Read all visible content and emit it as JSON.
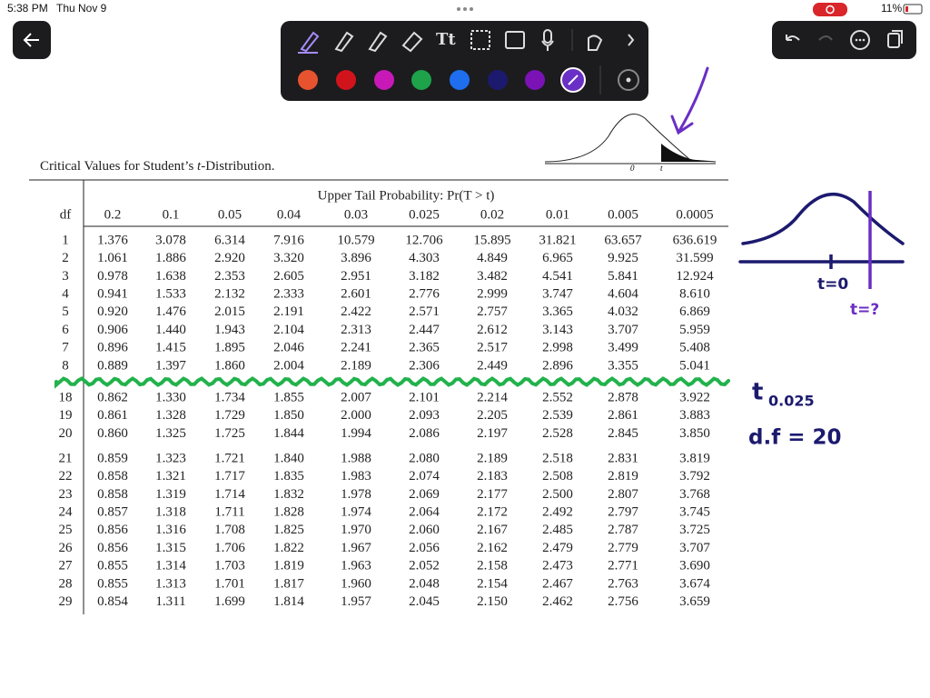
{
  "status_bar": {
    "time": "5:38 PM",
    "date": "Thu Nov 9",
    "battery": "11%"
  },
  "toolbar": {
    "text_tool": "Tt"
  },
  "figure": {
    "zero_label": "0",
    "t_label": "t"
  },
  "table": {
    "title_prefix": "Critical Values for Student’s ",
    "title_var": "t",
    "title_suffix": "-Distribution.",
    "header": "Upper Tail Probability:  Pr(T > t)",
    "df_header": "df",
    "columns": [
      "0.2",
      "0.1",
      "0.05",
      "0.04",
      "0.03",
      "0.025",
      "0.02",
      "0.01",
      "0.005",
      "0.0005"
    ],
    "groups": [
      [
        [
          "1",
          "1.376",
          "3.078",
          "6.314",
          "7.916",
          "10.579",
          "12.706",
          "15.895",
          "31.821",
          "63.657",
          "636.619"
        ],
        [
          "2",
          "1.061",
          "1.886",
          "2.920",
          "3.320",
          "3.896",
          "4.303",
          "4.849",
          "6.965",
          "9.925",
          "31.599"
        ],
        [
          "3",
          "0.978",
          "1.638",
          "2.353",
          "2.605",
          "2.951",
          "3.182",
          "3.482",
          "4.541",
          "5.841",
          "12.924"
        ],
        [
          "4",
          "0.941",
          "1.533",
          "2.132",
          "2.333",
          "2.601",
          "2.776",
          "2.999",
          "3.747",
          "4.604",
          "8.610"
        ],
        [
          "5",
          "0.920",
          "1.476",
          "2.015",
          "2.191",
          "2.422",
          "2.571",
          "2.757",
          "3.365",
          "4.032",
          "6.869"
        ],
        [
          "6",
          "0.906",
          "1.440",
          "1.943",
          "2.104",
          "2.313",
          "2.447",
          "2.612",
          "3.143",
          "3.707",
          "5.959"
        ],
        [
          "7",
          "0.896",
          "1.415",
          "1.895",
          "2.046",
          "2.241",
          "2.365",
          "2.517",
          "2.998",
          "3.499",
          "5.408"
        ],
        [
          "8",
          "0.889",
          "1.397",
          "1.860",
          "2.004",
          "2.189",
          "2.306",
          "2.449",
          "2.896",
          "3.355",
          "5.041"
        ]
      ],
      [
        [
          "18",
          "0.862",
          "1.330",
          "1.734",
          "1.855",
          "2.007",
          "2.101",
          "2.214",
          "2.552",
          "2.878",
          "3.922"
        ],
        [
          "19",
          "0.861",
          "1.328",
          "1.729",
          "1.850",
          "2.000",
          "2.093",
          "2.205",
          "2.539",
          "2.861",
          "3.883"
        ],
        [
          "20",
          "0.860",
          "1.325",
          "1.725",
          "1.844",
          "1.994",
          "2.086",
          "2.197",
          "2.528",
          "2.845",
          "3.850"
        ]
      ],
      [
        [
          "21",
          "0.859",
          "1.323",
          "1.721",
          "1.840",
          "1.988",
          "2.080",
          "2.189",
          "2.518",
          "2.831",
          "3.819"
        ],
        [
          "22",
          "0.858",
          "1.321",
          "1.717",
          "1.835",
          "1.983",
          "2.074",
          "2.183",
          "2.508",
          "2.819",
          "3.792"
        ],
        [
          "23",
          "0.858",
          "1.319",
          "1.714",
          "1.832",
          "1.978",
          "2.069",
          "2.177",
          "2.500",
          "2.807",
          "3.768"
        ],
        [
          "24",
          "0.857",
          "1.318",
          "1.711",
          "1.828",
          "1.974",
          "2.064",
          "2.172",
          "2.492",
          "2.797",
          "3.745"
        ],
        [
          "25",
          "0.856",
          "1.316",
          "1.708",
          "1.825",
          "1.970",
          "2.060",
          "2.167",
          "2.485",
          "2.787",
          "3.725"
        ],
        [
          "26",
          "0.856",
          "1.315",
          "1.706",
          "1.822",
          "1.967",
          "2.056",
          "2.162",
          "2.479",
          "2.779",
          "3.707"
        ],
        [
          "27",
          "0.855",
          "1.314",
          "1.703",
          "1.819",
          "1.963",
          "2.052",
          "2.158",
          "2.473",
          "2.771",
          "3.690"
        ],
        [
          "28",
          "0.855",
          "1.313",
          "1.701",
          "1.817",
          "1.960",
          "2.048",
          "2.154",
          "2.467",
          "2.763",
          "3.674"
        ],
        [
          "29",
          "0.854",
          "1.311",
          "1.699",
          "1.814",
          "1.957",
          "2.045",
          "2.150",
          "2.462",
          "2.756",
          "3.659"
        ]
      ]
    ]
  },
  "annotations": {
    "t_zero": "t=0",
    "t_unknown": "t=?",
    "t_symbol": "t",
    "t_subscript": "0.025",
    "df_note": "d.f = 20"
  }
}
